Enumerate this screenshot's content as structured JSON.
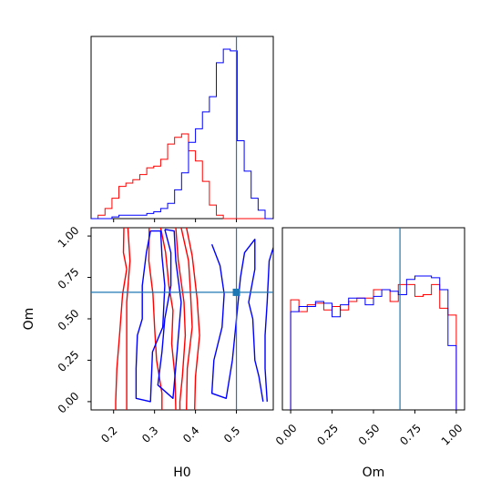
{
  "chart_data": {
    "type": "corner",
    "colors": {
      "sample_a": "#ff0000",
      "sample_b": "#0000ff",
      "truth": "#1f77b4"
    },
    "truth": {
      "H0": 0.5,
      "Om": 0.66
    },
    "panels": {
      "hist_H0": {
        "type": "histogram",
        "x_range": [
          0.145,
          0.59
        ],
        "y_max": 1.0,
        "ticks_hidden": true,
        "truth_line": 0.5,
        "bins": [
          0.145,
          0.162,
          0.179,
          0.196,
          0.213,
          0.23,
          0.247,
          0.264,
          0.281,
          0.298,
          0.315,
          0.332,
          0.349,
          0.366,
          0.383,
          0.4,
          0.417,
          0.434,
          0.451,
          0.468,
          0.485,
          0.502,
          0.519,
          0.536,
          0.553,
          0.57,
          0.587
        ],
        "series": [
          {
            "color": "red",
            "counts": [
              0,
              0.02,
              0.06,
              0.12,
              0.19,
              0.21,
              0.23,
              0.26,
              0.3,
              0.31,
              0.35,
              0.44,
              0.48,
              0.5,
              0.4,
              0.34,
              0.22,
              0.08,
              0.02,
              0,
              0,
              0,
              0,
              0,
              0,
              0
            ]
          },
          {
            "color": "blue",
            "counts": [
              0,
              0,
              0,
              0.01,
              0.02,
              0.02,
              0.02,
              0.02,
              0.03,
              0.04,
              0.06,
              0.09,
              0.17,
              0.27,
              0.45,
              0.53,
              0.63,
              0.72,
              0.92,
              1.0,
              0.99,
              0.46,
              0.28,
              0.12,
              0.05,
              0
            ]
          }
        ]
      },
      "hist_Om": {
        "type": "histogram",
        "x_range": [
          -0.05,
          1.05
        ],
        "y_max": 1.0,
        "truth_line": 0.66,
        "x_ticks": [
          "0.00",
          "0.25",
          "0.50",
          "0.75",
          "1.00"
        ],
        "x_tick_values": [
          0,
          0.25,
          0.5,
          0.75,
          1.0
        ],
        "xlabel": "Om",
        "bins": [
          0,
          0.05,
          0.1,
          0.15,
          0.2,
          0.25,
          0.3,
          0.35,
          0.4,
          0.45,
          0.5,
          0.55,
          0.6,
          0.65,
          0.7,
          0.75,
          0.8,
          0.85,
          0.9,
          0.95,
          1.0
        ],
        "series": [
          {
            "color": "red",
            "counts": [
              0.65,
              0.58,
              0.62,
              0.63,
              0.59,
              0.61,
              0.59,
              0.64,
              0.66,
              0.66,
              0.71,
              0.71,
              0.64,
              0.74,
              0.74,
              0.67,
              0.68,
              0.74,
              0.6,
              0.56
            ]
          },
          {
            "color": "blue",
            "counts": [
              0.58,
              0.61,
              0.61,
              0.64,
              0.63,
              0.55,
              0.62,
              0.66,
              0.66,
              0.62,
              0.67,
              0.71,
              0.7,
              0.68,
              0.77,
              0.79,
              0.79,
              0.78,
              0.71,
              0.38
            ]
          }
        ]
      },
      "joint": {
        "type": "contour",
        "x_range": [
          0.145,
          0.59
        ],
        "y_range": [
          -0.05,
          1.05
        ],
        "x_ticks": [
          "0.2",
          "0.3",
          "0.4",
          "0.5"
        ],
        "x_tick_values": [
          0.2,
          0.3,
          0.4,
          0.5
        ],
        "y_ticks": [
          "0.00",
          "0.25",
          "0.50",
          "0.75",
          "1.00"
        ],
        "y_tick_values": [
          0,
          0.25,
          0.5,
          0.75,
          1.0
        ],
        "xlabel": "H0",
        "ylabel": "Om",
        "truth_point": [
          0.5,
          0.66
        ],
        "contours": [
          {
            "color": "red",
            "points": [
              [
                0.225,
                1.05
              ],
              [
                0.224,
                0.9
              ],
              [
                0.232,
                0.8
              ],
              [
                0.222,
                0.65
              ],
              [
                0.215,
                0.42
              ],
              [
                0.208,
                0.2
              ],
              [
                0.205,
                0.0
              ],
              [
                0.205,
                -0.05
              ]
            ]
          },
          {
            "color": "red",
            "points": [
              [
                0.235,
                1.05
              ],
              [
                0.24,
                0.85
              ],
              [
                0.232,
                0.6
              ],
              [
                0.232,
                0.32
              ],
              [
                0.232,
                0.0
              ],
              [
                0.232,
                -0.05
              ]
            ]
          },
          {
            "color": "red",
            "points": [
              [
                0.287,
                1.05
              ],
              [
                0.286,
                0.85
              ],
              [
                0.296,
                0.65
              ],
              [
                0.3,
                0.45
              ],
              [
                0.305,
                0.25
              ],
              [
                0.318,
                0.05
              ],
              [
                0.318,
                -0.05
              ]
            ]
          },
          {
            "color": "red",
            "points": [
              [
                0.315,
                1.05
              ],
              [
                0.327,
                0.9
              ],
              [
                0.335,
                0.7
              ],
              [
                0.345,
                0.55
              ],
              [
                0.342,
                0.35
              ],
              [
                0.35,
                0.15
              ],
              [
                0.352,
                -0.05
              ]
            ]
          },
          {
            "color": "red",
            "points": [
              [
                0.352,
                1.05
              ],
              [
                0.358,
                0.85
              ],
              [
                0.372,
                0.6
              ],
              [
                0.375,
                0.4
              ],
              [
                0.368,
                0.15
              ],
              [
                0.362,
                0.0
              ],
              [
                0.362,
                -0.05
              ]
            ]
          },
          {
            "color": "red",
            "points": [
              [
                0.365,
                1.05
              ],
              [
                0.383,
                0.85
              ],
              [
                0.388,
                0.65
              ],
              [
                0.392,
                0.45
              ],
              [
                0.38,
                0.2
              ],
              [
                0.378,
                -0.05
              ]
            ]
          },
          {
            "color": "red",
            "points": [
              [
                0.378,
                1.05
              ],
              [
                0.392,
                0.88
              ],
              [
                0.404,
                0.62
              ],
              [
                0.41,
                0.4
              ],
              [
                0.4,
                0.15
              ],
              [
                0.398,
                -0.05
              ]
            ]
          },
          {
            "color": "blue",
            "points": [
              [
                0.29,
                1.03
              ],
              [
                0.28,
                0.9
              ],
              [
                0.27,
                0.7
              ],
              [
                0.27,
                0.5
              ],
              [
                0.258,
                0.4
              ],
              [
                0.255,
                0.2
              ],
              [
                0.255,
                0.02
              ],
              [
                0.29,
                0.0
              ],
              [
                0.295,
                0.3
              ],
              [
                0.32,
                0.45
              ],
              [
                0.325,
                0.7
              ],
              [
                0.318,
                0.88
              ],
              [
                0.315,
                1.03
              ],
              [
                0.29,
                1.03
              ]
            ]
          },
          {
            "color": "blue",
            "points": [
              [
                0.325,
                1.04
              ],
              [
                0.34,
                0.9
              ],
              [
                0.34,
                0.7
              ],
              [
                0.325,
                0.5
              ],
              [
                0.318,
                0.3
              ],
              [
                0.308,
                0.1
              ],
              [
                0.345,
                0.02
              ],
              [
                0.355,
                0.3
              ],
              [
                0.365,
                0.6
              ],
              [
                0.352,
                0.85
              ],
              [
                0.348,
                1.03
              ],
              [
                0.325,
                1.04
              ]
            ]
          },
          {
            "color": "blue",
            "points": [
              [
                0.44,
                0.95
              ],
              [
                0.46,
                0.82
              ],
              [
                0.47,
                0.65
              ],
              [
                0.465,
                0.45
              ],
              [
                0.445,
                0.25
              ],
              [
                0.44,
                0.05
              ],
              [
                0.475,
                0.02
              ],
              [
                0.49,
                0.25
              ],
              [
                0.5,
                0.5
              ],
              [
                0.51,
                0.75
              ],
              [
                0.52,
                0.9
              ],
              [
                0.545,
                0.98
              ],
              [
                0.545,
                0.8
              ],
              [
                0.53,
                0.6
              ],
              [
                0.54,
                0.5
              ],
              [
                0.545,
                0.25
              ],
              [
                0.555,
                0.15
              ],
              [
                0.565,
                0.0
              ]
            ]
          },
          {
            "color": "blue",
            "points": [
              [
                0.59,
                0.93
              ],
              [
                0.58,
                0.85
              ],
              [
                0.575,
                0.6
              ],
              [
                0.57,
                0.4
              ],
              [
                0.57,
                0.2
              ],
              [
                0.575,
                0.0
              ]
            ]
          }
        ]
      }
    }
  }
}
